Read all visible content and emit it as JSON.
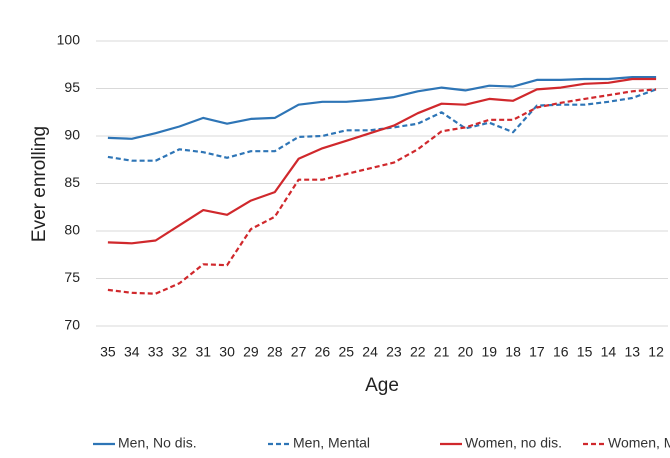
{
  "chart_data": {
    "type": "line",
    "x_label": "Age",
    "y_label": "Ever enrolling",
    "categories": [
      "35",
      "34",
      "33",
      "32",
      "31",
      "30",
      "29",
      "28",
      "27",
      "26",
      "25",
      "24",
      "23",
      "22",
      "21",
      "20",
      "19",
      "18",
      "17",
      "16",
      "15",
      "14",
      "13",
      "12"
    ],
    "ylim": [
      70,
      100
    ],
    "yticks": [
      70,
      75,
      80,
      85,
      90,
      95,
      100
    ],
    "grid": true,
    "legend": "bottom",
    "series": [
      {
        "name": "Men, No dis.",
        "color": "#2e75b6",
        "dashed": false,
        "values": [
          89.8,
          89.7,
          90.3,
          91.0,
          91.9,
          91.3,
          91.8,
          91.9,
          93.3,
          93.6,
          93.6,
          93.8,
          94.1,
          94.7,
          95.1,
          94.8,
          95.3,
          95.2,
          95.9,
          95.9,
          96.0,
          96.0,
          96.2,
          96.2
        ]
      },
      {
        "name": "Men, Mental",
        "color": "#2e75b6",
        "dashed": true,
        "values": [
          87.8,
          87.4,
          87.4,
          88.6,
          88.3,
          87.7,
          88.4,
          88.4,
          89.9,
          90.0,
          90.6,
          90.6,
          90.9,
          91.3,
          92.5,
          90.8,
          91.4,
          90.4,
          93.2,
          93.3,
          93.3,
          93.6,
          94.0,
          94.9
        ]
      },
      {
        "name": "Women, no dis.",
        "color": "#d0282c",
        "dashed": false,
        "values": [
          78.8,
          78.7,
          79.0,
          80.6,
          82.2,
          81.7,
          83.2,
          84.1,
          87.6,
          88.7,
          89.5,
          90.3,
          91.1,
          92.4,
          93.4,
          93.3,
          93.9,
          93.7,
          94.9,
          95.1,
          95.5,
          95.6,
          96.0,
          96.0
        ]
      },
      {
        "name": "Women, Mental",
        "color": "#d0282c",
        "dashed": true,
        "values": [
          73.8,
          73.5,
          73.4,
          74.5,
          76.5,
          76.4,
          80.2,
          81.5,
          85.4,
          85.4,
          86.0,
          86.6,
          87.2,
          88.6,
          90.5,
          90.9,
          91.7,
          91.7,
          93.0,
          93.5,
          93.9,
          94.3,
          94.7,
          94.9
        ]
      }
    ]
  }
}
